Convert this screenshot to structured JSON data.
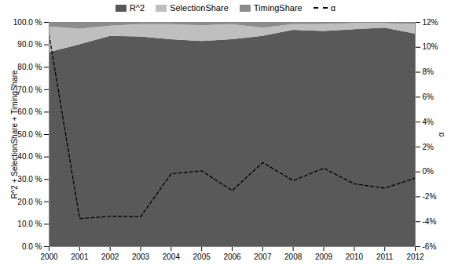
{
  "chart_data": {
    "type": "area",
    "stacked": true,
    "x": [
      2000,
      2001,
      2002,
      2003,
      2004,
      2005,
      2006,
      2007,
      2008,
      2009,
      2010,
      2011,
      2012
    ],
    "xlim": [
      2000,
      2012
    ],
    "xticks": [
      2000,
      2001,
      2002,
      2003,
      2004,
      2005,
      2006,
      2007,
      2008,
      2009,
      2010,
      2011,
      2012
    ],
    "ylabel": "R^2 + SelectionShare + TimingShare",
    "ylim": [
      0,
      100
    ],
    "yticks": [
      {
        "value": 0,
        "label": "0.0 %"
      },
      {
        "value": 10,
        "label": "10.0 %"
      },
      {
        "value": 20,
        "label": "20.0 %"
      },
      {
        "value": 30,
        "label": "30.0 %"
      },
      {
        "value": 40,
        "label": "40.0 %"
      },
      {
        "value": 50,
        "label": "50.0 %"
      },
      {
        "value": 60,
        "label": "60.0 %"
      },
      {
        "value": 70,
        "label": "70.0 %"
      },
      {
        "value": 80,
        "label": "80.0 %"
      },
      {
        "value": 90,
        "label": "90.0 %"
      },
      {
        "value": 100,
        "label": "100.0 %"
      }
    ],
    "y2label": "α",
    "y2lim": [
      -6,
      12
    ],
    "y2ticks": [
      {
        "value": -6,
        "label": "-6%"
      },
      {
        "value": -4,
        "label": "-4%"
      },
      {
        "value": -2,
        "label": "-2%"
      },
      {
        "value": 0,
        "label": "0%"
      },
      {
        "value": 2,
        "label": "2%"
      },
      {
        "value": 4,
        "label": "4%"
      },
      {
        "value": 6,
        "label": "6%"
      },
      {
        "value": 8,
        "label": "8%"
      },
      {
        "value": 10,
        "label": "10%"
      },
      {
        "value": 12,
        "label": "12%"
      }
    ],
    "grid": false,
    "legend": "top",
    "series": [
      {
        "name": "R^2",
        "color": "#595959",
        "values": [
          86.5,
          90,
          93.8,
          93.5,
          92.3,
          91.5,
          92.3,
          93.8,
          96.5,
          96,
          96.8,
          97.5,
          94.8
        ]
      },
      {
        "name": "SelectionShare",
        "color": "#bfbfbf",
        "values": [
          11.5,
          7,
          4.5,
          5.5,
          6.7,
          7,
          6.7,
          3.7,
          2.5,
          3,
          2.7,
          2,
          4.2
        ]
      },
      {
        "name": "TimingShare",
        "color": "#8c8c8c",
        "values": [
          2,
          3,
          1.7,
          1,
          1,
          1.5,
          1,
          2.5,
          1,
          1,
          0.5,
          0.5,
          1
        ]
      },
      {
        "name": "α",
        "type": "line",
        "axis": "y2",
        "color": "#000000",
        "line_style": "dashed",
        "values": [
          11,
          -3.75,
          -3.57,
          -3.6,
          -0.15,
          0.08,
          -1.5,
          0.75,
          -0.7,
          0.3,
          -0.96,
          -1.3,
          -0.5
        ]
      }
    ]
  }
}
